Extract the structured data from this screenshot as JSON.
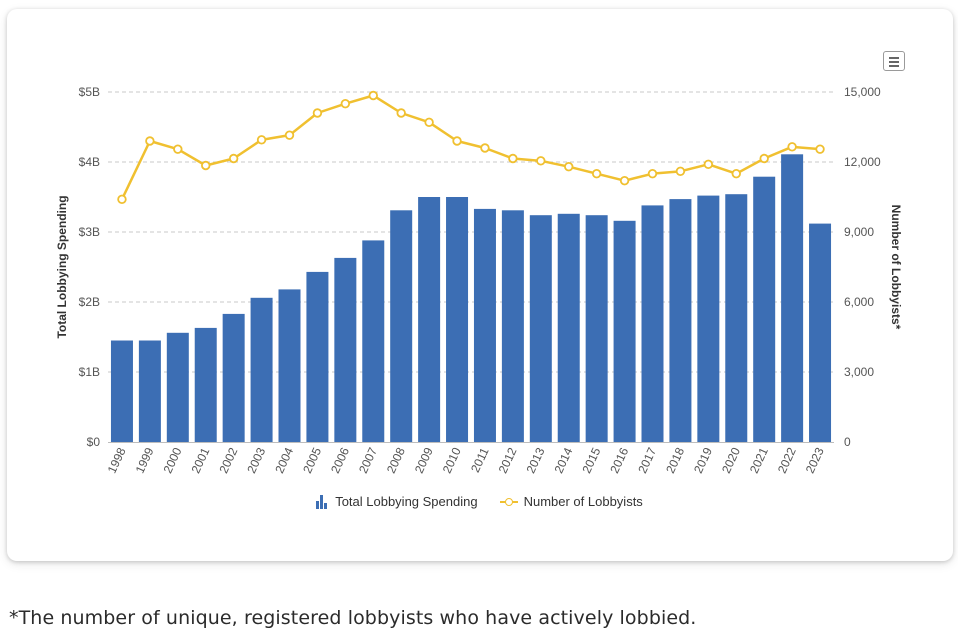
{
  "chart_data": {
    "type": "bar",
    "categories": [
      "1998",
      "1999",
      "2000",
      "2001",
      "2002",
      "2003",
      "2004",
      "2005",
      "2006",
      "2007",
      "2008",
      "2009",
      "2010",
      "2011",
      "2012",
      "2013",
      "2014",
      "2015",
      "2016",
      "2017",
      "2018",
      "2019",
      "2020",
      "2021",
      "2022",
      "2023"
    ],
    "series": [
      {
        "name": "Total Lobbying Spending",
        "type": "bar",
        "axis": "left",
        "color": "#3c6eb4",
        "values": [
          1.45,
          1.45,
          1.56,
          1.63,
          1.83,
          2.06,
          2.18,
          2.43,
          2.63,
          2.88,
          3.31,
          3.5,
          3.5,
          3.33,
          3.31,
          3.24,
          3.26,
          3.24,
          3.16,
          3.38,
          3.47,
          3.52,
          3.54,
          3.79,
          4.11,
          3.12
        ]
      },
      {
        "name": "Number of Lobbyists",
        "type": "line",
        "axis": "right",
        "color": "#f0c030",
        "values": [
          10400,
          12900,
          12550,
          11850,
          12150,
          12950,
          13150,
          14100,
          14500,
          14850,
          14100,
          13700,
          12900,
          12600,
          12150,
          12050,
          11800,
          11500,
          11200,
          11500,
          11600,
          11900,
          11500,
          12150,
          12650,
          12550
        ]
      }
    ],
    "ylabel_left": "Total Lobbying Spending",
    "ylabel_right": "Number of Lobbyists*",
    "ylim_left": [
      0,
      5
    ],
    "ylim_right": [
      0,
      15000
    ],
    "yticks_left": [
      "$0",
      "$1B",
      "$2B",
      "$3B",
      "$4B",
      "$5B"
    ],
    "yticks_right": [
      "0",
      "3,000",
      "6,000",
      "9,000",
      "12,000",
      "15,000"
    ],
    "grid": true,
    "legend_position": "bottom"
  },
  "legend": {
    "bar_label": "Total Lobbying Spending",
    "line_label": "Number of Lobbyists"
  },
  "footnote": "*The number of unique, registered lobbyists who have actively lobbied."
}
